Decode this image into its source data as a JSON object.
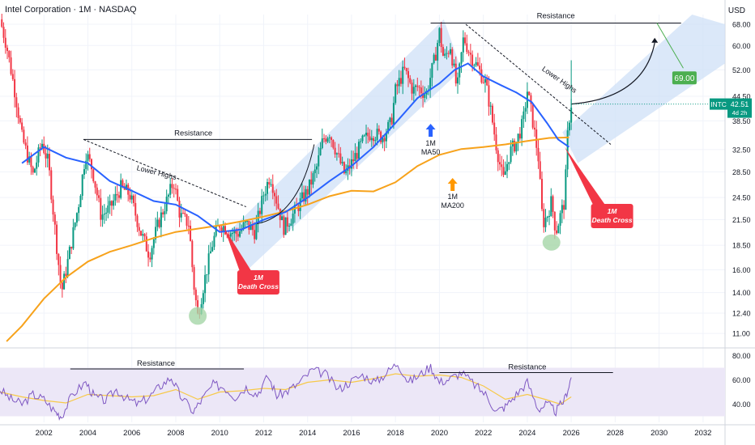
{
  "header": {
    "symbol_title": "Intel Corporation · 1M · NASDAQ",
    "currency": "USD"
  },
  "colors": {
    "up": "#089981",
    "down": "#f23645",
    "ma50": "#2962ff",
    "ma200": "#f7a21b",
    "channel": "#cfe0f7",
    "rsi": "#7e57c2",
    "rsi_ma": "#f7c948",
    "rsi_band": "#ece7f7",
    "badge_green": "#4caf50",
    "badge_red": "#f23645",
    "circle_green": "#a5d6a7",
    "arrow_blue": "#2962ff",
    "arrow_orange": "#ff9800"
  },
  "chart_data": {
    "type": "candlestick",
    "series_names": [
      "INTC"
    ],
    "price_axis": {
      "scale": "log",
      "ticks": [
        "68.00",
        "60.00",
        "52.00",
        "44.50",
        "38.50",
        "32.50",
        "28.50",
        "24.50",
        "21.50",
        "18.50",
        "16.00",
        "14.00",
        "12.40",
        "11.00"
      ]
    },
    "time_axis": {
      "range": [
        2000,
        2033
      ],
      "ticks": [
        "2002",
        "2004",
        "2006",
        "2008",
        "2010",
        "2012",
        "2014",
        "2016",
        "2018",
        "2020",
        "2022",
        "2024",
        "2026",
        "2028",
        "2030",
        "2032"
      ]
    },
    "price_path": [
      [
        2000.0,
        70
      ],
      [
        2000.3,
        60
      ],
      [
        2000.7,
        45
      ],
      [
        2001.0,
        35
      ],
      [
        2001.5,
        28
      ],
      [
        2001.9,
        34
      ],
      [
        2002.2,
        30
      ],
      [
        2002.6,
        18
      ],
      [
        2002.8,
        14
      ],
      [
        2003.1,
        17
      ],
      [
        2003.6,
        24
      ],
      [
        2003.9,
        32
      ],
      [
        2004.2,
        29
      ],
      [
        2004.6,
        22
      ],
      [
        2005.0,
        23
      ],
      [
        2005.5,
        26
      ],
      [
        2005.9,
        25
      ],
      [
        2006.4,
        20
      ],
      [
        2006.8,
        17.5
      ],
      [
        2007.2,
        21
      ],
      [
        2007.7,
        25
      ],
      [
        2007.9,
        27
      ],
      [
        2008.2,
        22
      ],
      [
        2008.6,
        21
      ],
      [
        2008.8,
        15
      ],
      [
        2009.0,
        12.2
      ],
      [
        2009.3,
        15
      ],
      [
        2009.7,
        19
      ],
      [
        2010.0,
        21
      ],
      [
        2010.5,
        20
      ],
      [
        2010.8,
        19.8
      ],
      [
        2011.2,
        21
      ],
      [
        2011.6,
        20
      ],
      [
        2012.0,
        25
      ],
      [
        2012.3,
        28
      ],
      [
        2012.6,
        24
      ],
      [
        2012.9,
        20.5
      ],
      [
        2013.3,
        22
      ],
      [
        2013.7,
        24
      ],
      [
        2014.0,
        25.5
      ],
      [
        2014.4,
        29
      ],
      [
        2014.7,
        34.5
      ],
      [
        2015.0,
        36
      ],
      [
        2015.4,
        31
      ],
      [
        2015.7,
        28
      ],
      [
        2016.0,
        30
      ],
      [
        2016.5,
        34
      ],
      [
        2016.9,
        36
      ],
      [
        2017.4,
        35
      ],
      [
        2017.8,
        38
      ],
      [
        2018.0,
        46
      ],
      [
        2018.4,
        52
      ],
      [
        2018.8,
        46
      ],
      [
        2019.0,
        47
      ],
      [
        2019.4,
        45
      ],
      [
        2019.8,
        56
      ],
      [
        2020.0,
        65
      ],
      [
        2020.2,
        55
      ],
      [
        2020.5,
        60
      ],
      [
        2020.8,
        46
      ],
      [
        2021.1,
        63
      ],
      [
        2021.4,
        57
      ],
      [
        2021.8,
        52
      ],
      [
        2022.1,
        48
      ],
      [
        2022.3,
        42
      ],
      [
        2022.6,
        33
      ],
      [
        2022.9,
        27
      ],
      [
        2023.2,
        32
      ],
      [
        2023.5,
        34
      ],
      [
        2023.8,
        38
      ],
      [
        2024.0,
        46
      ],
      [
        2024.2,
        40
      ],
      [
        2024.5,
        31
      ],
      [
        2024.7,
        21
      ],
      [
        2024.9,
        22
      ],
      [
        2025.1,
        24
      ],
      [
        2025.3,
        20
      ],
      [
        2025.5,
        22
      ],
      [
        2025.7,
        24
      ],
      [
        2025.85,
        37
      ],
      [
        2026.0,
        42.5
      ]
    ],
    "ma50": [
      [
        2001.0,
        30
      ],
      [
        2002.0,
        33
      ],
      [
        2003.0,
        31
      ],
      [
        2004.0,
        30
      ],
      [
        2005.0,
        27
      ],
      [
        2006.0,
        25.5
      ],
      [
        2007.0,
        24
      ],
      [
        2008.0,
        23.5
      ],
      [
        2009.0,
        22
      ],
      [
        2010.0,
        20
      ],
      [
        2011.0,
        20.3
      ],
      [
        2012.0,
        21.5
      ],
      [
        2013.0,
        22.5
      ],
      [
        2014.0,
        24.5
      ],
      [
        2015.0,
        27
      ],
      [
        2016.0,
        29.5
      ],
      [
        2017.0,
        33
      ],
      [
        2018.0,
        38
      ],
      [
        2019.0,
        44
      ],
      [
        2020.0,
        48
      ],
      [
        2020.7,
        52
      ],
      [
        2021.3,
        54
      ],
      [
        2022.0,
        50
      ],
      [
        2022.8,
        47.5
      ],
      [
        2023.5,
        45.5
      ],
      [
        2024.2,
        43
      ],
      [
        2024.9,
        38
      ],
      [
        2025.4,
        34.5
      ],
      [
        2025.9,
        33
      ]
    ],
    "ma200": [
      [
        2000.3,
        10.5
      ],
      [
        2001.0,
        11.5
      ],
      [
        2002.0,
        13.5
      ],
      [
        2003.0,
        15.3
      ],
      [
        2004.0,
        16.8
      ],
      [
        2005.0,
        17.8
      ],
      [
        2006.0,
        18.5
      ],
      [
        2007.0,
        19.3
      ],
      [
        2008.0,
        20
      ],
      [
        2009.0,
        20.4
      ],
      [
        2010.0,
        20.8
      ],
      [
        2011.0,
        21.3
      ],
      [
        2012.0,
        21.9
      ],
      [
        2013.0,
        22.6
      ],
      [
        2014.0,
        23.5
      ],
      [
        2015.0,
        24.7
      ],
      [
        2016.0,
        25.5
      ],
      [
        2017.0,
        25.4
      ],
      [
        2018.0,
        26.8
      ],
      [
        2019.0,
        29.5
      ],
      [
        2020.0,
        31.5
      ],
      [
        2021.0,
        32.6
      ],
      [
        2022.0,
        33
      ],
      [
        2023.0,
        33.5
      ],
      [
        2024.0,
        34.2
      ],
      [
        2025.0,
        34.8
      ],
      [
        2025.9,
        34.9
      ]
    ],
    "rsi_axis": {
      "ticks": [
        "80.00",
        "60.00",
        "40.00"
      ],
      "range": [
        25,
        85
      ],
      "band": [
        30,
        70
      ]
    },
    "rsi_path": [
      [
        2000.0,
        52
      ],
      [
        2000.5,
        44
      ],
      [
        2001.0,
        40
      ],
      [
        2001.5,
        48
      ],
      [
        2002.0,
        44
      ],
      [
        2002.5,
        34
      ],
      [
        2002.8,
        30
      ],
      [
        2003.3,
        48
      ],
      [
        2003.9,
        58
      ],
      [
        2004.3,
        46
      ],
      [
        2004.8,
        43
      ],
      [
        2005.3,
        52
      ],
      [
        2005.8,
        44
      ],
      [
        2006.3,
        40
      ],
      [
        2006.8,
        46
      ],
      [
        2007.3,
        55
      ],
      [
        2007.8,
        62
      ],
      [
        2008.2,
        47
      ],
      [
        2008.8,
        34
      ],
      [
        2009.2,
        44
      ],
      [
        2009.7,
        56
      ],
      [
        2010.2,
        54
      ],
      [
        2010.7,
        46
      ],
      [
        2011.2,
        54
      ],
      [
        2011.7,
        48
      ],
      [
        2012.2,
        63
      ],
      [
        2012.6,
        47
      ],
      [
        2013.1,
        51
      ],
      [
        2013.6,
        57
      ],
      [
        2014.2,
        68
      ],
      [
        2014.8,
        65
      ],
      [
        2015.4,
        52
      ],
      [
        2015.9,
        58
      ],
      [
        2016.5,
        64
      ],
      [
        2017.1,
        58
      ],
      [
        2017.6,
        66
      ],
      [
        2018.1,
        74
      ],
      [
        2018.6,
        58
      ],
      [
        2019.1,
        64
      ],
      [
        2019.6,
        71
      ],
      [
        2020.0,
        58
      ],
      [
        2020.5,
        61
      ],
      [
        2021.0,
        66
      ],
      [
        2021.6,
        56
      ],
      [
        2022.1,
        48
      ],
      [
        2022.6,
        34
      ],
      [
        2023.0,
        38
      ],
      [
        2023.5,
        48
      ],
      [
        2024.0,
        58
      ],
      [
        2024.5,
        36
      ],
      [
        2024.9,
        40
      ],
      [
        2025.3,
        34
      ],
      [
        2025.7,
        44
      ],
      [
        2026.0,
        62
      ]
    ],
    "rsi_ma_path": [
      [
        2000.0,
        50
      ],
      [
        2001.0,
        46
      ],
      [
        2002.0,
        43
      ],
      [
        2003.0,
        41
      ],
      [
        2004.0,
        48
      ],
      [
        2005.0,
        47
      ],
      [
        2006.0,
        46
      ],
      [
        2007.0,
        47
      ],
      [
        2008.0,
        52
      ],
      [
        2009.0,
        44
      ],
      [
        2010.0,
        50
      ],
      [
        2011.0,
        51
      ],
      [
        2012.0,
        53
      ],
      [
        2013.0,
        52
      ],
      [
        2014.0,
        58
      ],
      [
        2015.0,
        60
      ],
      [
        2016.0,
        58
      ],
      [
        2017.0,
        61
      ],
      [
        2018.0,
        65
      ],
      [
        2019.0,
        63
      ],
      [
        2020.0,
        64
      ],
      [
        2021.0,
        62
      ],
      [
        2022.0,
        55
      ],
      [
        2023.0,
        44
      ],
      [
        2024.0,
        48
      ],
      [
        2024.8,
        44
      ],
      [
        2025.5,
        40
      ],
      [
        2026.0,
        46
      ]
    ],
    "price_tag": {
      "symbol": "INTC",
      "value": "42.51",
      "sub": "4d 2h"
    },
    "annotations": {
      "resistance_top": "Resistance",
      "resistance_mid": "Resistance",
      "lower_highs_left": "Lower Highs",
      "lower_highs_right": "Lower Highs",
      "ma50_label": [
        "1M",
        "MA50"
      ],
      "ma200_label": [
        "1M",
        "MA200"
      ],
      "death_cross_1": [
        "1M",
        "Death Cross"
      ],
      "death_cross_2": [
        "1M",
        "Death Cross"
      ],
      "target": "69.00",
      "rsi_resistance_left": "Resistance",
      "rsi_resistance_right": "Resistance"
    }
  }
}
